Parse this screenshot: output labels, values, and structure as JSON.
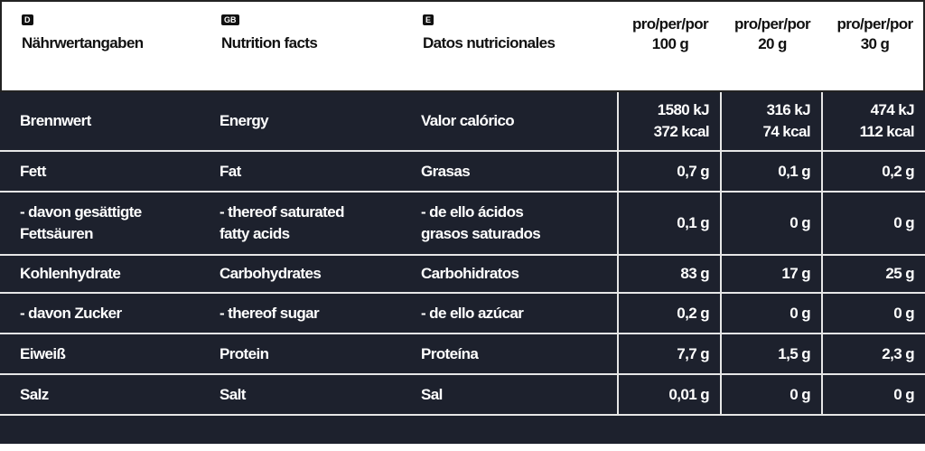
{
  "header": {
    "columns": [
      {
        "badge": "D",
        "label": "Nährwertangaben"
      },
      {
        "badge": "GB",
        "label": "Nutrition facts"
      },
      {
        "badge": "E",
        "label": "Datos nutricionales"
      },
      {
        "lines": [
          "pro/per/por",
          "100 g"
        ]
      },
      {
        "lines": [
          "pro/per/por",
          "20 g"
        ]
      },
      {
        "lines": [
          "pro/per/por",
          "30 g"
        ]
      }
    ]
  },
  "rows": [
    [
      [
        "Brennwert"
      ],
      [
        "Energy"
      ],
      [
        "Valor calórico"
      ],
      [
        "1580 kJ",
        "372 kcal"
      ],
      [
        "316 kJ",
        "74 kcal"
      ],
      [
        "474 kJ",
        "112 kcal"
      ]
    ],
    [
      [
        "Fett"
      ],
      [
        "Fat"
      ],
      [
        "Grasas"
      ],
      [
        "0,7 g"
      ],
      [
        "0,1 g"
      ],
      [
        "0,2 g"
      ]
    ],
    [
      [
        "- davon gesättigte",
        "Fettsäuren"
      ],
      [
        "- thereof saturated",
        "fatty acids"
      ],
      [
        " - de ello ácidos",
        "grasos saturados"
      ],
      [
        "0,1 g"
      ],
      [
        "0 g"
      ],
      [
        "0 g"
      ]
    ],
    [
      [
        "Kohlenhydrate"
      ],
      [
        "Carbohydrates"
      ],
      [
        "Carbohidratos"
      ],
      [
        "83 g"
      ],
      [
        "17 g"
      ],
      [
        "25 g"
      ]
    ],
    [
      [
        "- davon Zucker"
      ],
      [
        "- thereof sugar"
      ],
      [
        " - de ello azúcar"
      ],
      [
        "0,2 g"
      ],
      [
        "0 g"
      ],
      [
        "0 g"
      ]
    ],
    [
      [
        "Eiweiß"
      ],
      [
        "Protein"
      ],
      [
        "Proteína"
      ],
      [
        "7,7 g"
      ],
      [
        "1,5 g"
      ],
      [
        "2,3 g"
      ]
    ],
    [
      [
        "Salz"
      ],
      [
        "Salt"
      ],
      [
        "Sal"
      ],
      [
        "0,01 g"
      ],
      [
        "0 g"
      ],
      [
        "0 g"
      ]
    ]
  ]
}
